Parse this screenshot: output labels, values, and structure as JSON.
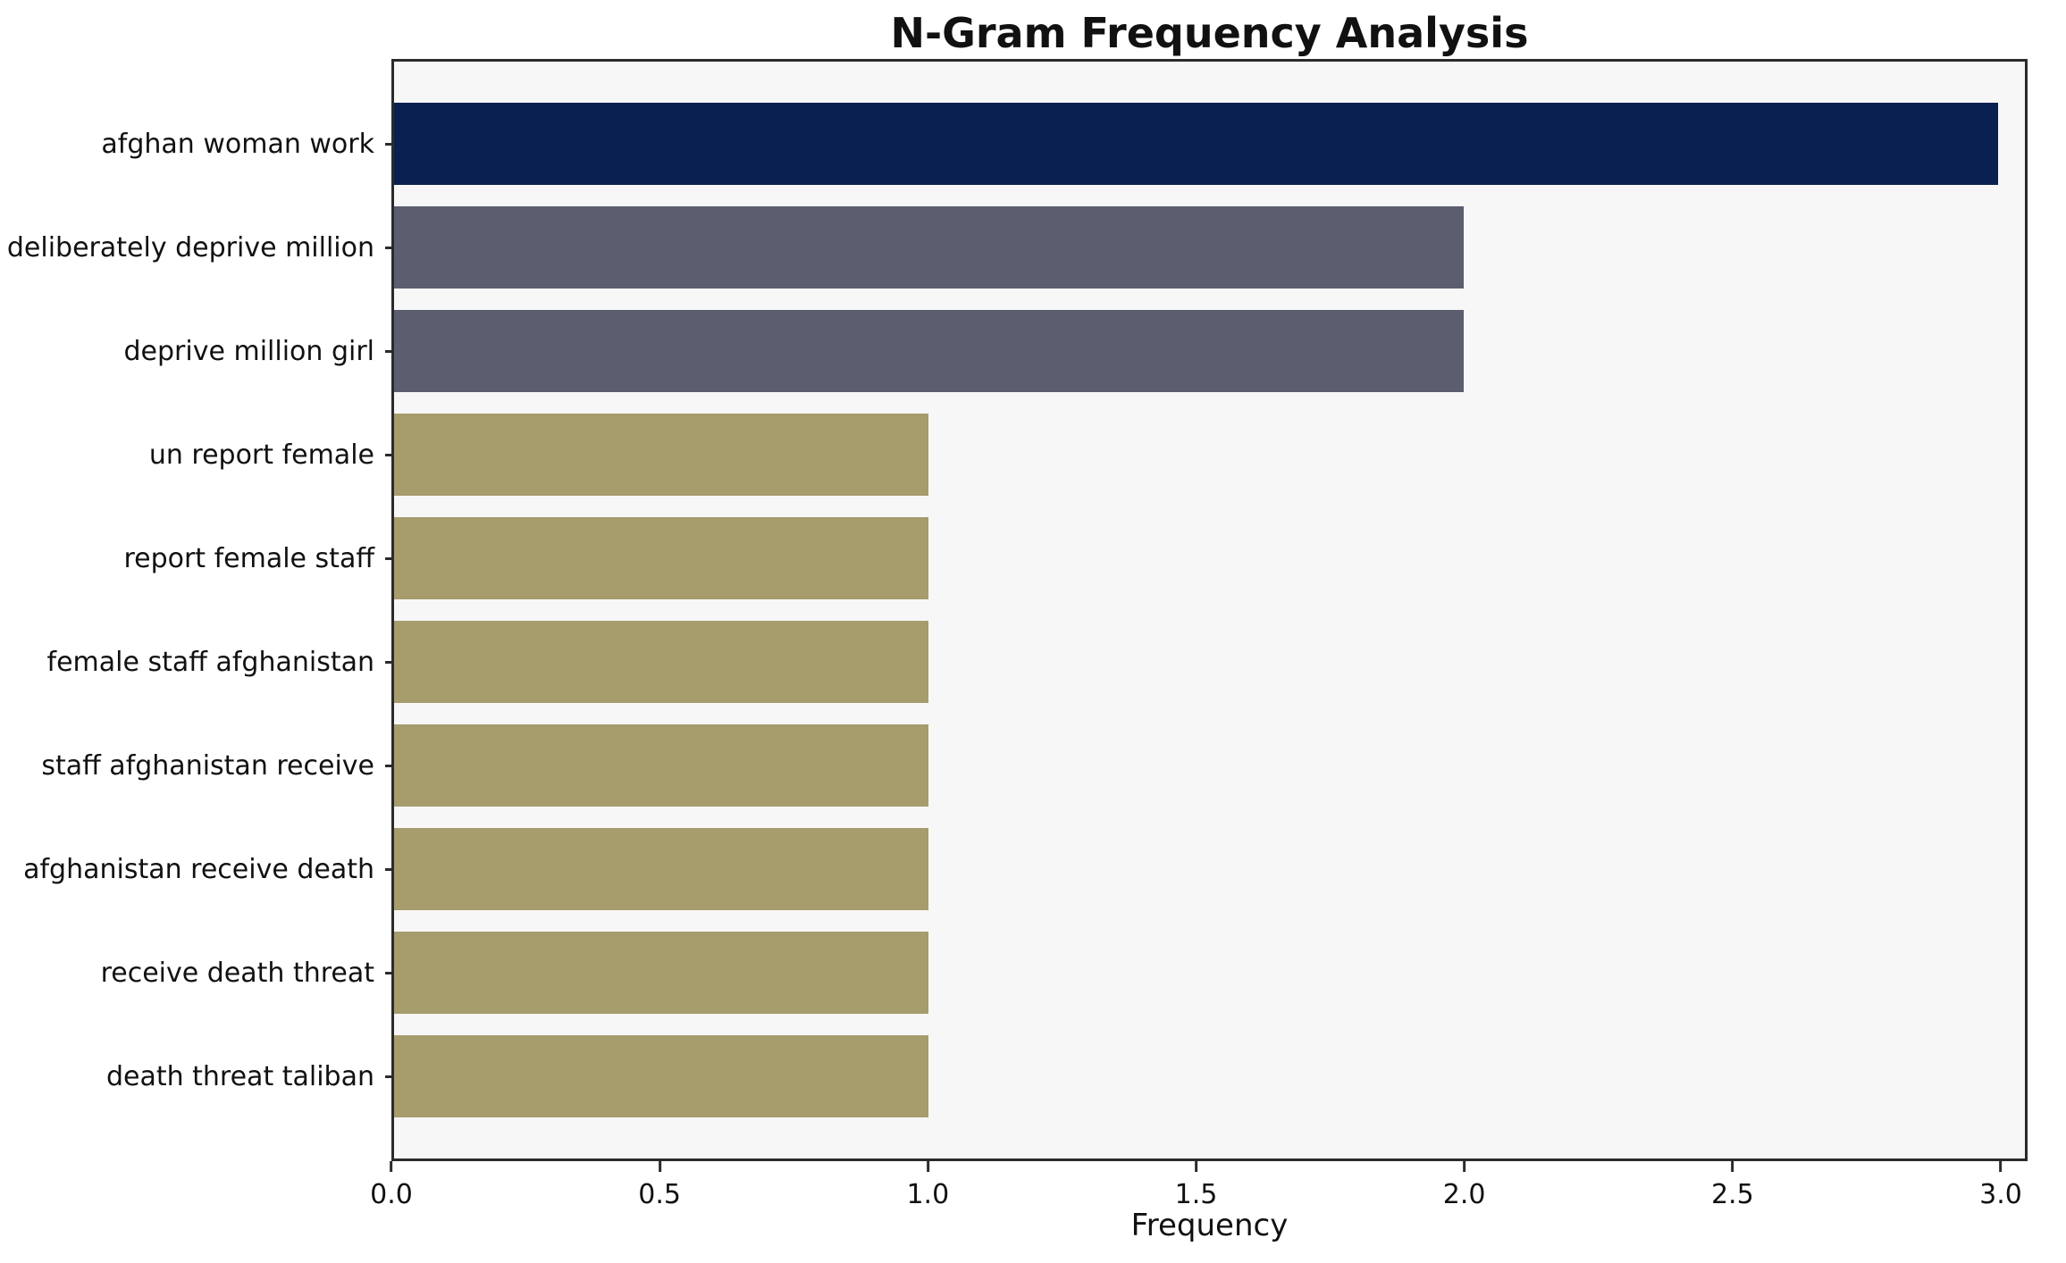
{
  "chart_data": {
    "type": "bar",
    "orientation": "horizontal",
    "title": "N-Gram Frequency Analysis",
    "xlabel": "Frequency",
    "ylabel": "",
    "categories": [
      "afghan woman work",
      "deliberately deprive million",
      "deprive million girl",
      "un report female",
      "report female staff",
      "female staff afghanistan",
      "staff afghanistan receive",
      "afghanistan receive death",
      "receive death threat",
      "death threat taliban"
    ],
    "values": [
      3,
      2,
      2,
      1,
      1,
      1,
      1,
      1,
      1,
      1
    ],
    "bar_colors": [
      "#092050",
      "#5b5e6e",
      "#5b5e6e",
      "#a69c6c",
      "#a69c6c",
      "#a69c6c",
      "#a69c6c",
      "#a69c6c",
      "#a69c6c",
      "#a69c6c"
    ],
    "xlim": [
      0,
      3.05
    ],
    "xticks": [
      0,
      0.5,
      1,
      1.5,
      2,
      2.5,
      3
    ],
    "xtick_labels": [
      "0.0",
      "0.5",
      "1.0",
      "1.5",
      "2.0",
      "2.5",
      "3.0"
    ],
    "grid": false,
    "legend": "none",
    "plot_background": "#f7f7f7",
    "figure_background": "#ffffff"
  }
}
